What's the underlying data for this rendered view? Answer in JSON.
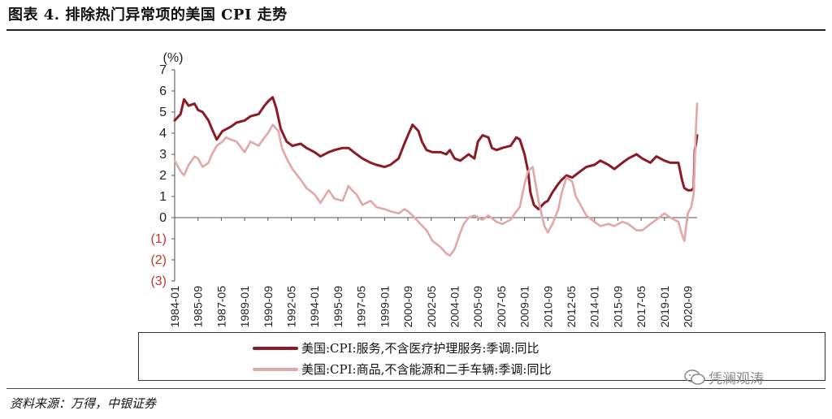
{
  "header": {
    "title": "图表 4. 排除热门异常项的美国 CPI 走势"
  },
  "footer": {
    "source": "资料来源：万得，中银证券",
    "watermark": "凭澜观涛"
  },
  "colors": {
    "series_services": "#8b1a24",
    "series_goods": "#e2a7a7",
    "axis": "#555555",
    "negative_tick": "#c0392b"
  },
  "chart_data": {
    "type": "line",
    "ylabel": "(%)",
    "ylim": [
      -3,
      7
    ],
    "yticks": [
      {
        "value": 7,
        "label": "7"
      },
      {
        "value": 6,
        "label": "6"
      },
      {
        "value": 5,
        "label": "5"
      },
      {
        "value": 4,
        "label": "4"
      },
      {
        "value": 3,
        "label": "3"
      },
      {
        "value": 2,
        "label": "2"
      },
      {
        "value": 1,
        "label": "1"
      },
      {
        "value": 0,
        "label": "0"
      },
      {
        "value": -1,
        "label": "(1)"
      },
      {
        "value": -2,
        "label": "(2)"
      },
      {
        "value": -3,
        "label": "(3)"
      }
    ],
    "xlim": [
      "1984-01",
      "2021-05"
    ],
    "xticks": [
      "1984-01",
      "1985-09",
      "1987-05",
      "1989-01",
      "1990-09",
      "1992-05",
      "1994-01",
      "1995-09",
      "1997-05",
      "1999-01",
      "2000-09",
      "2002-05",
      "2004-01",
      "2005-09",
      "2007-05",
      "2009-01",
      "2010-09",
      "2012-05",
      "2014-01",
      "2015-09",
      "2017-05",
      "2019-01",
      "2020-09"
    ],
    "grid": false,
    "legend_position": "bottom",
    "series": [
      {
        "name": "美国:CPI:服务,不含医疗护理服务:季调:同比",
        "color": "#8b1a24",
        "points": [
          [
            "1984-01",
            4.6
          ],
          [
            "1984-06",
            4.9
          ],
          [
            "1984-09",
            5.6
          ],
          [
            "1985-01",
            5.3
          ],
          [
            "1985-06",
            5.4
          ],
          [
            "1985-09",
            5.1
          ],
          [
            "1986-01",
            5.0
          ],
          [
            "1986-06",
            4.6
          ],
          [
            "1986-09",
            4.2
          ],
          [
            "1987-01",
            3.7
          ],
          [
            "1987-06",
            4.1
          ],
          [
            "1988-01",
            4.3
          ],
          [
            "1988-06",
            4.5
          ],
          [
            "1989-01",
            4.6
          ],
          [
            "1989-06",
            4.8
          ],
          [
            "1990-01",
            4.9
          ],
          [
            "1990-06",
            5.3
          ],
          [
            "1990-09",
            5.5
          ],
          [
            "1991-01",
            5.7
          ],
          [
            "1991-04",
            5.2
          ],
          [
            "1991-08",
            4.2
          ],
          [
            "1992-01",
            3.6
          ],
          [
            "1992-06",
            3.4
          ],
          [
            "1993-01",
            3.5
          ],
          [
            "1993-06",
            3.3
          ],
          [
            "1994-01",
            3.1
          ],
          [
            "1994-06",
            2.9
          ],
          [
            "1995-01",
            3.1
          ],
          [
            "1995-06",
            3.2
          ],
          [
            "1996-01",
            3.3
          ],
          [
            "1996-06",
            3.3
          ],
          [
            "1997-01",
            3.0
          ],
          [
            "1997-06",
            2.8
          ],
          [
            "1998-01",
            2.6
          ],
          [
            "1998-06",
            2.5
          ],
          [
            "1999-01",
            2.4
          ],
          [
            "1999-06",
            2.5
          ],
          [
            "2000-01",
            2.8
          ],
          [
            "2000-06",
            3.5
          ],
          [
            "2000-09",
            3.9
          ],
          [
            "2001-01",
            4.4
          ],
          [
            "2001-06",
            4.1
          ],
          [
            "2001-09",
            3.6
          ],
          [
            "2002-01",
            3.2
          ],
          [
            "2002-06",
            3.1
          ],
          [
            "2003-01",
            3.1
          ],
          [
            "2003-06",
            3.0
          ],
          [
            "2003-09",
            3.2
          ],
          [
            "2004-01",
            2.8
          ],
          [
            "2004-06",
            2.7
          ],
          [
            "2005-01",
            3.0
          ],
          [
            "2005-06",
            2.8
          ],
          [
            "2005-09",
            3.6
          ],
          [
            "2006-01",
            3.9
          ],
          [
            "2006-06",
            3.8
          ],
          [
            "2006-09",
            3.3
          ],
          [
            "2007-01",
            3.2
          ],
          [
            "2007-06",
            3.3
          ],
          [
            "2008-01",
            3.4
          ],
          [
            "2008-06",
            3.8
          ],
          [
            "2008-09",
            3.7
          ],
          [
            "2009-01",
            3.0
          ],
          [
            "2009-04",
            2.2
          ],
          [
            "2009-06",
            1.2
          ],
          [
            "2009-09",
            0.6
          ],
          [
            "2010-01",
            0.4
          ],
          [
            "2010-06",
            0.7
          ],
          [
            "2010-09",
            0.8
          ],
          [
            "2011-01",
            1.2
          ],
          [
            "2011-06",
            1.6
          ],
          [
            "2011-09",
            1.8
          ],
          [
            "2012-01",
            2.0
          ],
          [
            "2012-06",
            1.9
          ],
          [
            "2013-01",
            2.2
          ],
          [
            "2013-06",
            2.4
          ],
          [
            "2014-01",
            2.5
          ],
          [
            "2014-06",
            2.7
          ],
          [
            "2015-01",
            2.5
          ],
          [
            "2015-06",
            2.3
          ],
          [
            "2016-01",
            2.6
          ],
          [
            "2016-06",
            2.8
          ],
          [
            "2017-01",
            3.0
          ],
          [
            "2017-06",
            2.8
          ],
          [
            "2018-01",
            2.6
          ],
          [
            "2018-06",
            2.9
          ],
          [
            "2019-01",
            2.7
          ],
          [
            "2019-06",
            2.6
          ],
          [
            "2020-01",
            2.6
          ],
          [
            "2020-04",
            1.8
          ],
          [
            "2020-06",
            1.4
          ],
          [
            "2020-09",
            1.3
          ],
          [
            "2020-12",
            1.3
          ],
          [
            "2021-02",
            1.4
          ],
          [
            "2021-03",
            3.2
          ],
          [
            "2021-04",
            3.5
          ],
          [
            "2021-05",
            3.9
          ]
        ]
      },
      {
        "name": "美国:CPI:商品,不含能源和二手车辆:季调:同比",
        "color": "#e2a7a7",
        "points": [
          [
            "1984-01",
            2.7
          ],
          [
            "1984-06",
            2.2
          ],
          [
            "1984-09",
            2.0
          ],
          [
            "1985-01",
            2.5
          ],
          [
            "1985-06",
            2.9
          ],
          [
            "1985-09",
            2.8
          ],
          [
            "1986-01",
            2.4
          ],
          [
            "1986-06",
            2.6
          ],
          [
            "1986-09",
            3.0
          ],
          [
            "1987-01",
            3.4
          ],
          [
            "1987-06",
            3.6
          ],
          [
            "1987-09",
            3.8
          ],
          [
            "1988-01",
            3.7
          ],
          [
            "1988-06",
            3.6
          ],
          [
            "1989-01",
            3.1
          ],
          [
            "1989-06",
            3.6
          ],
          [
            "1990-01",
            3.4
          ],
          [
            "1990-06",
            3.8
          ],
          [
            "1990-09",
            4.0
          ],
          [
            "1991-01",
            4.4
          ],
          [
            "1991-06",
            4.1
          ],
          [
            "1991-09",
            3.3
          ],
          [
            "1992-01",
            2.8
          ],
          [
            "1992-06",
            2.3
          ],
          [
            "1993-01",
            1.8
          ],
          [
            "1993-06",
            1.4
          ],
          [
            "1994-01",
            1.1
          ],
          [
            "1994-06",
            0.7
          ],
          [
            "1995-01",
            1.3
          ],
          [
            "1995-06",
            0.9
          ],
          [
            "1996-01",
            0.8
          ],
          [
            "1996-06",
            1.5
          ],
          [
            "1996-09",
            1.3
          ],
          [
            "1997-01",
            1.1
          ],
          [
            "1997-06",
            0.6
          ],
          [
            "1998-01",
            0.8
          ],
          [
            "1998-06",
            0.5
          ],
          [
            "1999-01",
            0.4
          ],
          [
            "1999-06",
            0.3
          ],
          [
            "2000-01",
            0.2
          ],
          [
            "2000-06",
            0.4
          ],
          [
            "2000-09",
            0.3
          ],
          [
            "2001-01",
            0.1
          ],
          [
            "2001-06",
            -0.2
          ],
          [
            "2002-01",
            -0.6
          ],
          [
            "2002-06",
            -1.1
          ],
          [
            "2003-01",
            -1.4
          ],
          [
            "2003-06",
            -1.7
          ],
          [
            "2003-09",
            -1.8
          ],
          [
            "2004-01",
            -1.5
          ],
          [
            "2004-06",
            -0.7
          ],
          [
            "2004-09",
            -0.3
          ],
          [
            "2005-01",
            0.0
          ],
          [
            "2005-06",
            0.1
          ],
          [
            "2006-01",
            -0.1
          ],
          [
            "2006-06",
            0.1
          ],
          [
            "2007-01",
            -0.2
          ],
          [
            "2007-06",
            -0.3
          ],
          [
            "2008-01",
            -0.1
          ],
          [
            "2008-06",
            0.3
          ],
          [
            "2008-09",
            0.5
          ],
          [
            "2009-01",
            1.6
          ],
          [
            "2009-04",
            2.2
          ],
          [
            "2009-08",
            2.4
          ],
          [
            "2010-01",
            0.8
          ],
          [
            "2010-06",
            -0.4
          ],
          [
            "2010-09",
            -0.7
          ],
          [
            "2011-01",
            -0.3
          ],
          [
            "2011-06",
            0.4
          ],
          [
            "2011-09",
            1.2
          ],
          [
            "2012-01",
            1.9
          ],
          [
            "2012-06",
            1.7
          ],
          [
            "2012-09",
            1.0
          ],
          [
            "2013-01",
            0.6
          ],
          [
            "2013-06",
            0.1
          ],
          [
            "2014-01",
            -0.2
          ],
          [
            "2014-06",
            -0.4
          ],
          [
            "2015-01",
            -0.3
          ],
          [
            "2015-06",
            -0.4
          ],
          [
            "2016-01",
            -0.2
          ],
          [
            "2016-06",
            -0.3
          ],
          [
            "2017-01",
            -0.6
          ],
          [
            "2017-06",
            -0.6
          ],
          [
            "2018-01",
            -0.3
          ],
          [
            "2018-06",
            -0.1
          ],
          [
            "2019-01",
            0.2
          ],
          [
            "2019-06",
            0.0
          ],
          [
            "2020-01",
            -0.2
          ],
          [
            "2020-04",
            -0.8
          ],
          [
            "2020-06",
            -1.1
          ],
          [
            "2020-09",
            0.2
          ],
          [
            "2020-12",
            0.5
          ],
          [
            "2021-02",
            1.1
          ],
          [
            "2021-03",
            2.8
          ],
          [
            "2021-04",
            4.3
          ],
          [
            "2021-05",
            5.4
          ]
        ]
      }
    ]
  }
}
